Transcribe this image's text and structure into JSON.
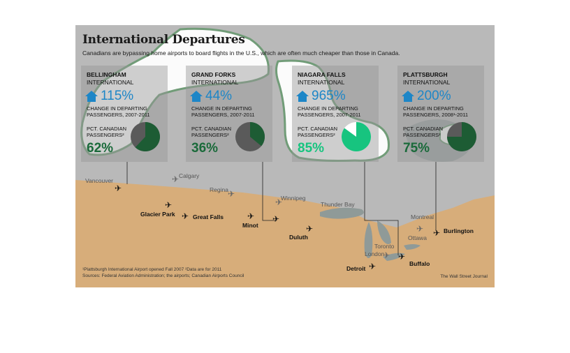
{
  "title": "International Departures",
  "subtitle": "Canadians are bypassing home airports to board flights in the U.S., which are often much cheaper than those in Canada.",
  "colors": {
    "change_blue": "#1d86c7",
    "pct_green": "#1a6a3a",
    "pie_green": "#1d5c34",
    "pie_gray": "#5a5a5a",
    "highlight_green": "#17c47f",
    "us_land": "#d7ad7a",
    "canada_land": "#b9b9b9",
    "water": "#8f9a98"
  },
  "cards": [
    {
      "name": "BELLINGHAM",
      "type": "INTERNATIONAL",
      "change": "115%",
      "change_label": "CHANGE IN DEPARTING PASSENGERS, 2007-2011",
      "pct_label": "PCT. CANADIAN PASSENGERS²",
      "pct": "62%",
      "icon": "house-icon"
    },
    {
      "name": "GRAND FORKS",
      "type": "INTERNATIONAL",
      "change": "44%",
      "change_label": "CHANGE IN DEPARTING PASSENGERS, 2007-2011",
      "pct_label": "PCT. CANADIAN PASSENGERS²",
      "pct": "36%",
      "icon": "house-icon"
    },
    {
      "name": "NIAGARA FALLS",
      "type": "INTERNATIONAL",
      "change": "965%",
      "change_label": "CHANGE IN DEPARTING PASSENGERS, 2007-2011",
      "pct_label": "PCT. CANADIAN PASSENGERS²",
      "pct": "85%",
      "icon": "house-icon"
    },
    {
      "name": "PLATTSBURGH",
      "type": "INTERNATIONAL",
      "change": "200%",
      "change_label": "CHANGE IN DEPARTING PASSENGERS, 2008¹-2011",
      "pct_label": "PCT. CANADIAN PASSENGERS²",
      "pct": "75%",
      "icon": "house-icon"
    }
  ],
  "chart_data": {
    "type": "pie",
    "title": "International Departures",
    "subtitle": "Canadians are bypassing home airports to board flights in the U.S., which are often much cheaper than those in Canada.",
    "series": [
      {
        "name": "BELLINGHAM INTERNATIONAL",
        "change_in_departing_passengers_pct": 115,
        "change_period": "2007-2011",
        "pct_canadian_passengers": 62
      },
      {
        "name": "GRAND FORKS INTERNATIONAL",
        "change_in_departing_passengers_pct": 44,
        "change_period": "2007-2011",
        "pct_canadian_passengers": 36
      },
      {
        "name": "NIAGARA FALLS INTERNATIONAL",
        "change_in_departing_passengers_pct": 965,
        "change_period": "2007-2011",
        "pct_canadian_passengers": 85
      },
      {
        "name": "PLATTSBURGH INTERNATIONAL",
        "change_in_departing_passengers_pct": 200,
        "change_period": "2008-2011",
        "pct_canadian_passengers": 75
      }
    ]
  },
  "map": {
    "us_cities": [
      "Glacier Park",
      "Great Falls",
      "Minot",
      "Duluth",
      "Detroit",
      "Buffalo",
      "Burlington"
    ],
    "canada_cities": [
      "Vancouver",
      "Calgary",
      "Regina",
      "Winnipeg",
      "Thunder Bay",
      "Toronto",
      "London",
      "Ottawa",
      "Montreal"
    ]
  },
  "footnote": {
    "line1": "¹Plattsburgh International Airport opened Fall 2007     ²Data are for 2011",
    "line2": "Sources: Federal Aviation Administration; the airports; Canadian Airports Council"
  },
  "credit": "The Wall Street Journal"
}
